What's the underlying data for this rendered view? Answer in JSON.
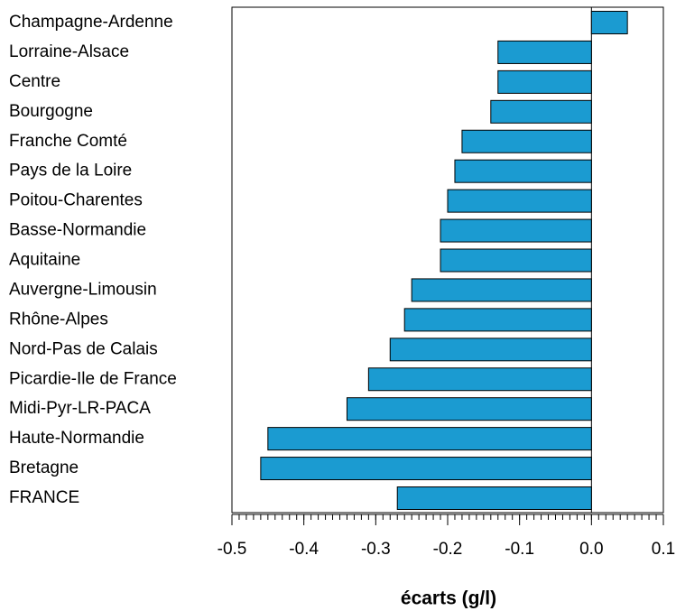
{
  "chart_data": {
    "type": "barh",
    "xlabel": "écarts (g/l)",
    "categories": [
      "Champagne-Ardenne",
      "Lorraine-Alsace",
      "Centre",
      "Bourgogne",
      "Franche Comté",
      "Pays de la Loire",
      "Poitou-Charentes",
      "Basse-Normandie",
      "Aquitaine",
      "Auvergne-Limousin",
      "Rhône-Alpes",
      "Nord-Pas de Calais",
      "Picardie-Ile de France",
      "Midi-Pyr-LR-PACA",
      "Haute-Normandie",
      "Bretagne",
      "FRANCE"
    ],
    "values": [
      0.05,
      -0.13,
      -0.13,
      -0.14,
      -0.18,
      -0.19,
      -0.2,
      -0.21,
      -0.21,
      -0.25,
      -0.26,
      -0.28,
      -0.31,
      -0.34,
      -0.45,
      -0.46,
      -0.27
    ],
    "color": "#1b9bd1",
    "xlim": [
      -0.5,
      0.1
    ],
    "xticks": [
      -0.5,
      -0.4,
      -0.3,
      -0.2,
      -0.1,
      {
        "value": 0,
        "label": "0.0"
      },
      0.1
    ]
  }
}
